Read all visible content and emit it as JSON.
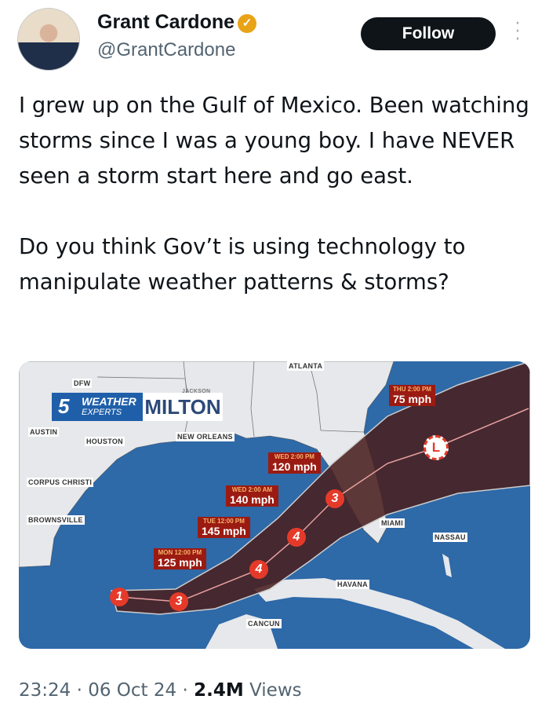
{
  "author": {
    "name": "Grant Cardone",
    "handle": "@GrantCardone",
    "verified_icon": "verified-badge-icon"
  },
  "follow_label": "Follow",
  "tweet": {
    "paragraphs": [
      "I grew up on the Gulf of Mexico. Been watching storms since I was a young boy. I have NEVER seen a storm start here and go east.",
      "Do you think Gov’t is using technology to manipulate weather patterns & storms?"
    ]
  },
  "map": {
    "logo": {
      "number": "5",
      "line1": "WEATHER",
      "line2": "EXPERTS"
    },
    "storm_name": "MILTON",
    "cities": [
      "ATLANTA",
      "DFW",
      "JACKSON",
      "AUSTIN",
      "HOUSTON",
      "NEW ORLEANS",
      "CORPUS CHRISTI",
      "BROWNSVILLE",
      "MIAMI",
      "NASSAU",
      "HAVANA",
      "CANCUN"
    ],
    "forecasts": [
      {
        "time": "MON 12:00 PM",
        "speed": "125 mph"
      },
      {
        "time": "TUE 12:00 PM",
        "speed": "145 mph"
      },
      {
        "time": "WED 2:00 AM",
        "speed": "140 mph"
      },
      {
        "time": "WED 2:00 PM",
        "speed": "120 mph"
      },
      {
        "time": "THU 2:00 PM",
        "speed": "75 mph"
      }
    ],
    "categories": [
      "1",
      "3",
      "4",
      "4",
      "3"
    ],
    "low_label": "L",
    "colors": {
      "water": "#2e69a8",
      "land": "#e6e8eb",
      "cone": "#4a1f1f",
      "marker": "#e53a2a"
    }
  },
  "footer": {
    "time": "23:24",
    "date": "06 Oct 24",
    "views_count": "2.4M",
    "views_label": "Views",
    "sep": "·"
  }
}
